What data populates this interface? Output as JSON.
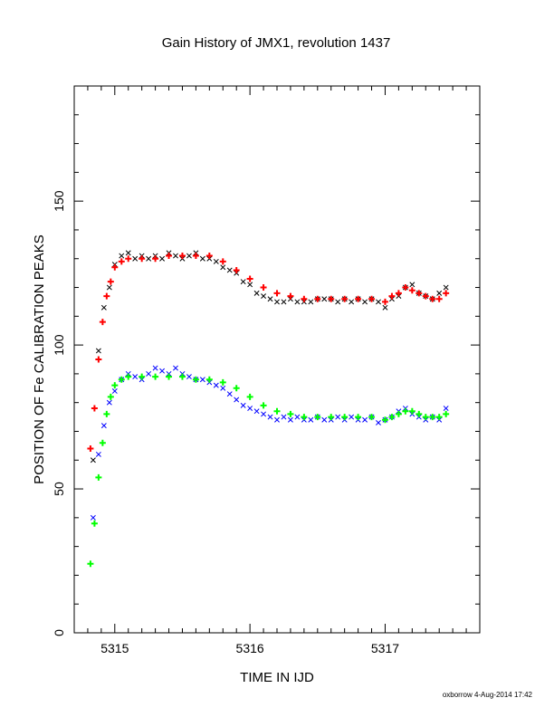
{
  "chart_data": {
    "type": "scatter",
    "title": "Gain History of JMX1, revolution 1437",
    "xlabel": "TIME IN IJD",
    "ylabel": "POSITION OF Fe CALIBRATION PEAKS",
    "xlim": [
      5314.7,
      5317.7
    ],
    "ylim": [
      0,
      190
    ],
    "x_ticks": [
      "5315",
      "5316",
      "5317"
    ],
    "x_tick_values": [
      5315,
      5316,
      5317
    ],
    "y_ticks": [
      "0",
      "50",
      "100",
      "150"
    ],
    "y_tick_values": [
      0,
      50,
      100,
      150
    ],
    "grid": false,
    "credit": "oxborrow  4-Aug-2014 17:42",
    "colors": {
      "upper_raw": "#000000",
      "upper_fit": "#ff0000",
      "lower_raw": "#0000ff",
      "lower_fit": "#00ff00"
    },
    "series": [
      {
        "marker": "x",
        "color": "#000000",
        "x": [
          5314.84,
          5314.88,
          5314.92,
          5314.96,
          5315.0,
          5315.05,
          5315.1,
          5315.15,
          5315.2,
          5315.25,
          5315.3,
          5315.35,
          5315.4,
          5315.45,
          5315.5,
          5315.55,
          5315.6,
          5315.65,
          5315.7,
          5315.75,
          5315.8,
          5315.85,
          5315.9,
          5315.95,
          5316.0,
          5316.05,
          5316.1,
          5316.15,
          5316.2,
          5316.25,
          5316.3,
          5316.35,
          5316.4,
          5316.45,
          5316.5,
          5316.55,
          5316.6,
          5316.65,
          5316.7,
          5316.75,
          5316.8,
          5316.85,
          5316.9,
          5316.95,
          5317.0,
          5317.05,
          5317.1,
          5317.15,
          5317.2,
          5317.25,
          5317.3,
          5317.35,
          5317.4,
          5317.45
        ],
        "y": [
          60,
          98,
          113,
          120,
          128,
          131,
          132,
          130,
          131,
          130,
          131,
          130,
          132,
          131,
          130,
          131,
          132,
          130,
          130,
          129,
          127,
          126,
          125,
          122,
          121,
          118,
          117,
          116,
          115,
          115,
          116,
          115,
          115,
          115,
          116,
          116,
          116,
          115,
          116,
          115,
          116,
          115,
          116,
          115,
          113,
          116,
          117,
          120,
          121,
          118,
          117,
          116,
          118,
          120
        ]
      },
      {
        "marker": "+",
        "color": "#ff0000",
        "x": [
          5314.82,
          5314.85,
          5314.88,
          5314.91,
          5314.94,
          5314.97,
          5315.0,
          5315.05,
          5315.1,
          5315.2,
          5315.3,
          5315.4,
          5315.5,
          5315.6,
          5315.7,
          5315.8,
          5315.9,
          5316.0,
          5316.1,
          5316.2,
          5316.3,
          5316.4,
          5316.5,
          5316.6,
          5316.7,
          5316.8,
          5316.9,
          5317.0,
          5317.05,
          5317.1,
          5317.15,
          5317.2,
          5317.25,
          5317.3,
          5317.35,
          5317.4,
          5317.45
        ],
        "y": [
          64,
          78,
          95,
          108,
          117,
          122,
          127,
          129,
          130,
          130,
          130,
          131,
          131,
          131,
          131,
          129,
          126,
          123,
          120,
          118,
          117,
          116,
          116,
          116,
          116,
          116,
          116,
          115,
          117,
          118,
          120,
          119,
          118,
          117,
          116,
          116,
          118
        ]
      },
      {
        "marker": "x",
        "color": "#0000ff",
        "x": [
          5314.84,
          5314.88,
          5314.92,
          5314.96,
          5315.0,
          5315.05,
          5315.1,
          5315.15,
          5315.2,
          5315.25,
          5315.3,
          5315.35,
          5315.4,
          5315.45,
          5315.5,
          5315.55,
          5315.6,
          5315.65,
          5315.7,
          5315.75,
          5315.8,
          5315.85,
          5315.9,
          5315.95,
          5316.0,
          5316.05,
          5316.1,
          5316.15,
          5316.2,
          5316.25,
          5316.3,
          5316.35,
          5316.4,
          5316.45,
          5316.5,
          5316.55,
          5316.6,
          5316.65,
          5316.7,
          5316.75,
          5316.8,
          5316.85,
          5316.9,
          5316.95,
          5317.0,
          5317.05,
          5317.1,
          5317.15,
          5317.2,
          5317.25,
          5317.3,
          5317.35,
          5317.4,
          5317.45
        ],
        "y": [
          40,
          62,
          72,
          80,
          84,
          88,
          90,
          89,
          88,
          90,
          92,
          91,
          90,
          92,
          90,
          89,
          88,
          88,
          87,
          86,
          85,
          83,
          81,
          79,
          78,
          77,
          76,
          75,
          74,
          75,
          74,
          75,
          74,
          74,
          75,
          74,
          74,
          75,
          74,
          75,
          74,
          74,
          75,
          73,
          74,
          75,
          77,
          78,
          76,
          75,
          74,
          75,
          74,
          78
        ]
      },
      {
        "marker": "+",
        "color": "#00ff00",
        "x": [
          5314.82,
          5314.85,
          5314.88,
          5314.91,
          5314.94,
          5314.97,
          5315.0,
          5315.05,
          5315.1,
          5315.2,
          5315.3,
          5315.4,
          5315.5,
          5315.6,
          5315.7,
          5315.8,
          5315.9,
          5316.0,
          5316.1,
          5316.2,
          5316.3,
          5316.4,
          5316.5,
          5316.6,
          5316.7,
          5316.8,
          5316.9,
          5317.0,
          5317.05,
          5317.1,
          5317.15,
          5317.2,
          5317.25,
          5317.3,
          5317.35,
          5317.4,
          5317.45
        ],
        "y": [
          24,
          38,
          54,
          66,
          76,
          82,
          86,
          88,
          89,
          89,
          89,
          89,
          89,
          88,
          88,
          87,
          85,
          82,
          79,
          77,
          76,
          75,
          75,
          75,
          75,
          75,
          75,
          74,
          75,
          76,
          77,
          77,
          76,
          75,
          75,
          75,
          76
        ]
      }
    ]
  }
}
